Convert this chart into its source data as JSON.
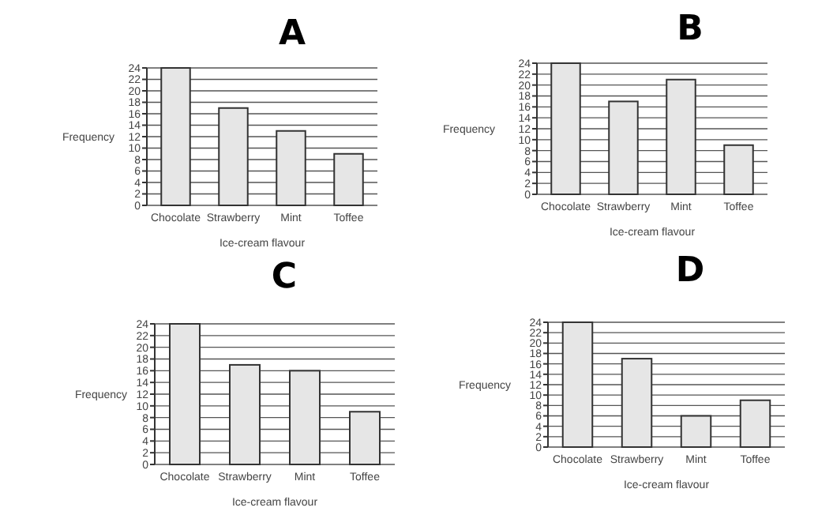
{
  "chart_data": [
    {
      "type": "bar",
      "title": "A",
      "xlabel": "Ice-cream flavour",
      "ylabel": "Frequency",
      "categories": [
        "Chocolate",
        "Strawberry",
        "Mint",
        "Toffee"
      ],
      "values": [
        24,
        17,
        13,
        9
      ],
      "color": "#e6e6e6",
      "ylim": [
        0,
        24
      ],
      "yticks": [
        0,
        2,
        4,
        6,
        8,
        10,
        12,
        14,
        16,
        18,
        20,
        22,
        24
      ],
      "grid": "y"
    },
    {
      "type": "bar",
      "title": "B",
      "xlabel": "Ice-cream flavour",
      "ylabel": "Frequency",
      "categories": [
        "Chocolate",
        "Strawberry",
        "Mint",
        "Toffee"
      ],
      "values": [
        24,
        17,
        21,
        9
      ],
      "color": "#e6e6e6",
      "ylim": [
        0,
        24
      ],
      "yticks": [
        0,
        2,
        4,
        6,
        8,
        10,
        12,
        14,
        16,
        18,
        20,
        22,
        24
      ],
      "grid": "y"
    },
    {
      "type": "bar",
      "title": "C",
      "xlabel": "Ice-cream flavour",
      "ylabel": "Frequency",
      "categories": [
        "Chocolate",
        "Strawberry",
        "Mint",
        "Toffee"
      ],
      "values": [
        24,
        17,
        16,
        9
      ],
      "color": "#e6e6e6",
      "ylim": [
        0,
        24
      ],
      "yticks": [
        0,
        2,
        4,
        6,
        8,
        10,
        12,
        14,
        16,
        18,
        20,
        22,
        24
      ],
      "grid": "y"
    },
    {
      "type": "bar",
      "title": "D",
      "xlabel": "Ice-cream flavour",
      "ylabel": "Frequency",
      "categories": [
        "Chocolate",
        "Strawberry",
        "Mint",
        "Toffee"
      ],
      "values": [
        24,
        17,
        6,
        9
      ],
      "color": "#e6e6e6",
      "ylim": [
        0,
        24
      ],
      "yticks": [
        0,
        2,
        4,
        6,
        8,
        10,
        12,
        14,
        16,
        18,
        20,
        22,
        24
      ],
      "grid": "y"
    }
  ]
}
